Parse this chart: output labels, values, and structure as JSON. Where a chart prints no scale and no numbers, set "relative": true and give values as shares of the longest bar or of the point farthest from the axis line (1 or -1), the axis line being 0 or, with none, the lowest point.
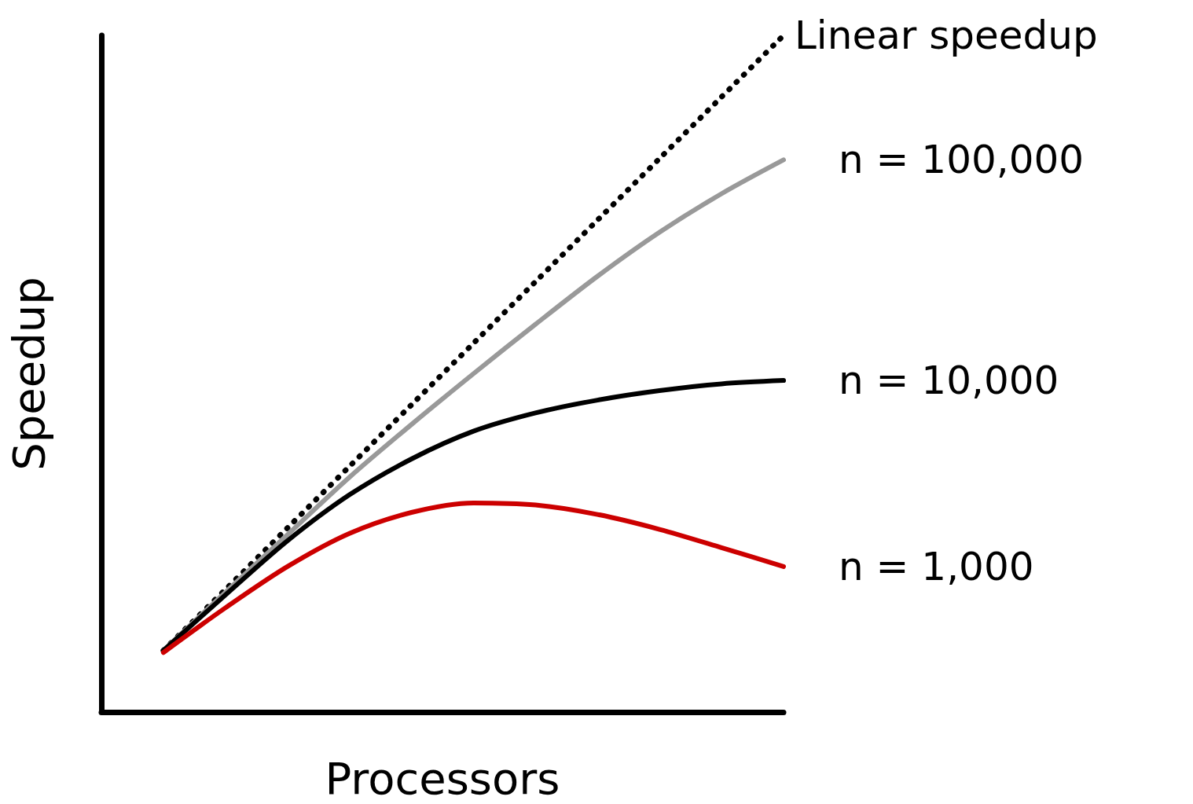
{
  "chart_data": {
    "type": "line",
    "xlabel": "Processors",
    "ylabel": "Speedup",
    "relative": true,
    "legend": false,
    "marker": "none",
    "grid": false,
    "categories": [
      null,
      null,
      null,
      null,
      null,
      null,
      null,
      null,
      null,
      null,
      null,
      null
    ],
    "series": [
      {
        "name": "Linear speedup",
        "color": "#000000",
        "line_style": "dotted",
        "values": [
          null,
          0.091,
          0.181,
          0.272,
          0.363,
          0.454,
          0.545,
          0.636,
          0.727,
          0.818,
          0.909,
          1.0
        ]
      },
      {
        "name": "n = 100,000",
        "color": "#999999",
        "line_style": "solid",
        "values": [
          null,
          0.091,
          0.177,
          0.262,
          0.347,
          0.425,
          0.5,
          0.573,
          0.644,
          0.709,
          0.766,
          0.816
        ]
      },
      {
        "name": "n = 10,000",
        "color": "#000000",
        "line_style": "solid",
        "values": [
          null,
          0.091,
          0.173,
          0.253,
          0.321,
          0.374,
          0.415,
          0.442,
          0.461,
          0.475,
          0.485,
          0.49
        ]
      },
      {
        "name": "n = 1,000",
        "color": "#cc0000",
        "line_style": "solid",
        "values": [
          null,
          0.088,
          0.154,
          0.215,
          0.264,
          0.295,
          0.309,
          0.306,
          0.292,
          0.27,
          0.243,
          0.215
        ]
      }
    ]
  }
}
